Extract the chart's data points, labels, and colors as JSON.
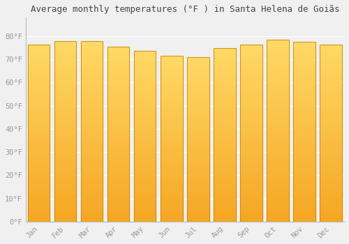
{
  "title": "Average monthly temperatures (°F ) in Santa Helena de Goiãs",
  "months": [
    "Jan",
    "Feb",
    "Mar",
    "Apr",
    "May",
    "Jun",
    "Jul",
    "Aug",
    "Sep",
    "Oct",
    "Nov",
    "Dec"
  ],
  "values": [
    76.5,
    78.0,
    78.0,
    75.5,
    73.5,
    71.5,
    71.0,
    75.0,
    76.5,
    78.5,
    77.5,
    76.5
  ],
  "bar_color_bottom": "#F5A623",
  "bar_color_top": "#FFD966",
  "bar_edge_color": "#C8860A",
  "ylim": [
    0,
    88
  ],
  "yticks": [
    0,
    10,
    20,
    30,
    40,
    50,
    60,
    70,
    80
  ],
  "ytick_labels": [
    "0°F",
    "10°F",
    "20°F",
    "30°F",
    "40°F",
    "50°F",
    "60°F",
    "70°F",
    "80°F"
  ],
  "background_color": "#f0f0f0",
  "plot_bg_color": "#f0f0f0",
  "grid_color": "#ffffff",
  "title_fontsize": 9,
  "tick_fontsize": 7.5,
  "tick_label_color": "#999999",
  "title_color": "#444444",
  "bar_width": 0.82
}
